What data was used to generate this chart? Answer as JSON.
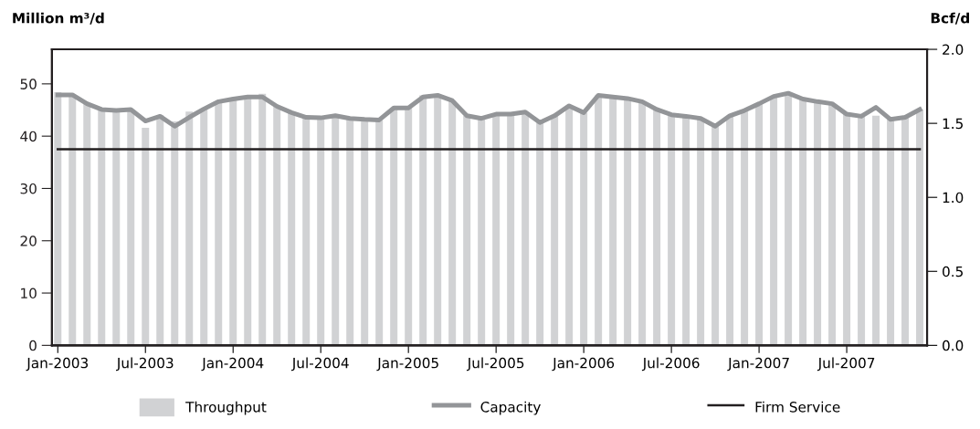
{
  "chart_data": {
    "type": "bar",
    "ylabel": "Million m³/d",
    "y2label": "Bcf/d",
    "categories": [
      "Jan-2003",
      null,
      null,
      null,
      null,
      null,
      "Jul-2003",
      null,
      null,
      null,
      null,
      null,
      "Jan-2004",
      null,
      null,
      null,
      null,
      null,
      "Jul-2004",
      null,
      null,
      null,
      null,
      null,
      "Jan-2005",
      null,
      null,
      null,
      null,
      null,
      "Jul-2005",
      null,
      null,
      null,
      null,
      null,
      "Jan-2006",
      null,
      null,
      null,
      null,
      null,
      "Jul-2006",
      null,
      null,
      null,
      null,
      null,
      "Jan-2007",
      null,
      null,
      null,
      null,
      null,
      "Jul-2007",
      null,
      null,
      null,
      null,
      null
    ],
    "series": [
      {
        "name": "Throughput",
        "color": "#d1d2d4",
        "values": [
          48.4,
          47.9,
          46.2,
          45.1,
          44.9,
          45.1,
          41.6,
          44.0,
          42.8,
          44.7,
          45.2,
          46.6,
          47.1,
          47.5,
          48.1,
          45.7,
          44.5,
          43.6,
          43.5,
          43.9,
          43.4,
          43.2,
          43.1,
          45.4,
          45.4,
          47.8,
          47.8,
          46.8,
          43.9,
          43.4,
          44.2,
          44.2,
          44.6,
          42.6,
          43.9,
          45.8,
          44.5,
          47.8,
          47.5,
          47.2,
          46.6,
          45.1,
          44.1,
          43.8,
          43.4,
          41.9,
          43.9,
          44.9,
          46.2,
          47.6,
          48.2,
          47.1,
          46.6,
          46.2,
          44.2,
          43.8,
          43.9,
          43.2,
          43.6,
          45.1
        ]
      },
      {
        "name": "Capacity",
        "type": "line",
        "color": "#939598",
        "values": [
          47.9,
          47.9,
          46.2,
          45.1,
          44.9,
          45.1,
          42.9,
          43.8,
          41.9,
          43.6,
          45.2,
          46.6,
          47.1,
          47.5,
          47.5,
          45.7,
          44.5,
          43.6,
          43.5,
          43.9,
          43.4,
          43.2,
          43.1,
          45.4,
          45.4,
          47.5,
          47.8,
          46.8,
          43.9,
          43.4,
          44.2,
          44.2,
          44.6,
          42.6,
          43.9,
          45.8,
          44.5,
          47.8,
          47.5,
          47.2,
          46.6,
          45.1,
          44.1,
          43.8,
          43.4,
          41.9,
          43.9,
          44.9,
          46.2,
          47.6,
          48.2,
          47.1,
          46.6,
          46.2,
          44.2,
          43.8,
          45.5,
          43.2,
          43.6,
          45.1
        ]
      },
      {
        "name": "Firm Service",
        "type": "line",
        "color": "#231f20",
        "values": [
          37.5,
          37.5,
          37.5,
          37.5,
          37.5,
          37.5,
          37.5,
          37.5,
          37.5,
          37.5,
          37.5,
          37.5,
          37.5,
          37.5,
          37.5,
          37.5,
          37.5,
          37.5,
          37.5,
          37.5,
          37.5,
          37.5,
          37.5,
          37.5,
          37.5,
          37.5,
          37.5,
          37.5,
          37.5,
          37.5,
          37.5,
          37.5,
          37.5,
          37.5,
          37.5,
          37.5,
          37.5,
          37.5,
          37.5,
          37.5,
          37.5,
          37.5,
          37.5,
          37.5,
          37.5,
          37.5,
          37.5,
          37.5,
          37.5,
          37.5,
          37.5,
          37.5,
          37.5,
          37.5,
          37.5,
          37.5,
          37.5,
          37.5,
          37.5,
          37.5
        ]
      }
    ],
    "ylim": [
      0,
      56.6
    ],
    "yticks": [
      0,
      10,
      20,
      30,
      40,
      50
    ],
    "y2lim": [
      0,
      2.0
    ],
    "y2ticks": [
      {
        "value": 0,
        "label": "0.0"
      },
      {
        "value": 0.5,
        "label": "0.5"
      },
      {
        "value": 1.0,
        "label": "1.0"
      },
      {
        "value": 1.5,
        "label": "1.5"
      },
      {
        "value": 2.0,
        "label": "2.0"
      }
    ],
    "grid": false,
    "legend": "bottom"
  }
}
